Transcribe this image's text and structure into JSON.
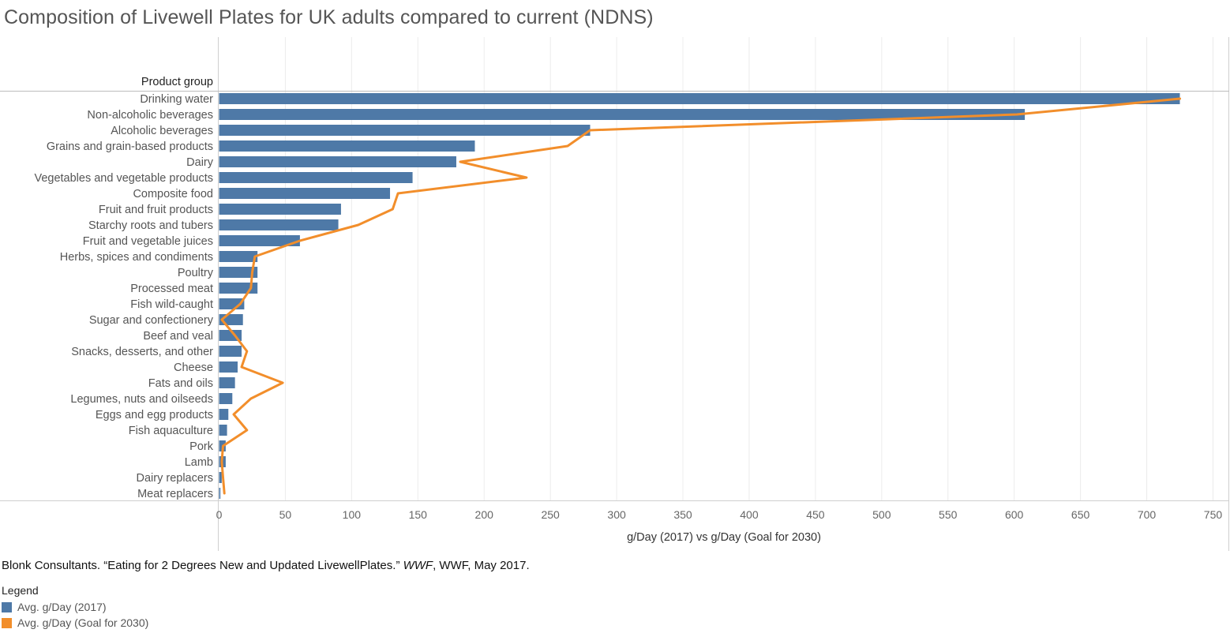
{
  "title": "Composition of Livewell Plates for UK adults compared to current (NDNS)",
  "citation": {
    "before": "Blonk Consultants. “Eating for 2 Degrees New and Updated LivewellPlates.” ",
    "italic": "WWF",
    "after": ", WWF, May 2017."
  },
  "legend": {
    "title": "Legend",
    "items": [
      {
        "label": "Avg. g/Day (2017)",
        "color": "#4e79a7"
      },
      {
        "label": "Avg. g/Day (Goal for 2030)",
        "color": "#f28e2b"
      }
    ]
  },
  "chart_data": {
    "type": "bar",
    "orientation": "horizontal",
    "category_header": "Product group",
    "xlabel": "g/Day (2017) vs g/Day (Goal for 2030)",
    "xlim": [
      0,
      760
    ],
    "xticks": [
      0,
      50,
      100,
      150,
      200,
      250,
      300,
      350,
      400,
      450,
      500,
      550,
      600,
      650,
      700,
      750
    ],
    "grid": true,
    "categories": [
      "Drinking water",
      "Non-alcoholic beverages",
      "Alcoholic beverages",
      "Grains and grain-based products",
      "Dairy",
      "Vegetables and vegetable products",
      "Composite food",
      "Fruit and fruit products",
      "Starchy roots and tubers",
      "Fruit and vegetable juices",
      "Herbs, spices and condiments",
      "Poultry",
      "Processed meat",
      "Fish wild-caught",
      "Sugar and confectionery",
      "Beef and veal",
      "Snacks, desserts, and other",
      "Cheese",
      "Fats and oils",
      "Legumes, nuts and oilseeds",
      "Eggs and egg products",
      "Fish aquaculture",
      "Pork",
      "Lamb",
      "Dairy replacers",
      "Meat replacers"
    ],
    "series": [
      {
        "name": "Avg. g/Day (2017)",
        "kind": "bar",
        "color": "#4e79a7",
        "values": [
          725,
          608,
          280,
          193,
          179,
          146,
          129,
          92,
          90,
          61,
          29,
          29,
          29,
          19,
          18,
          17,
          17,
          14,
          12,
          10,
          7,
          6,
          5,
          5,
          2,
          1
        ]
      },
      {
        "name": "Avg. g/Day (Goal for 2030)",
        "kind": "line",
        "color": "#f28e2b",
        "values": [
          725,
          602,
          280,
          263,
          182,
          232,
          135,
          131,
          105,
          61,
          27,
          25,
          24,
          16,
          2,
          12,
          21,
          17,
          48,
          24,
          11,
          21,
          3,
          2,
          3,
          4
        ]
      }
    ]
  }
}
